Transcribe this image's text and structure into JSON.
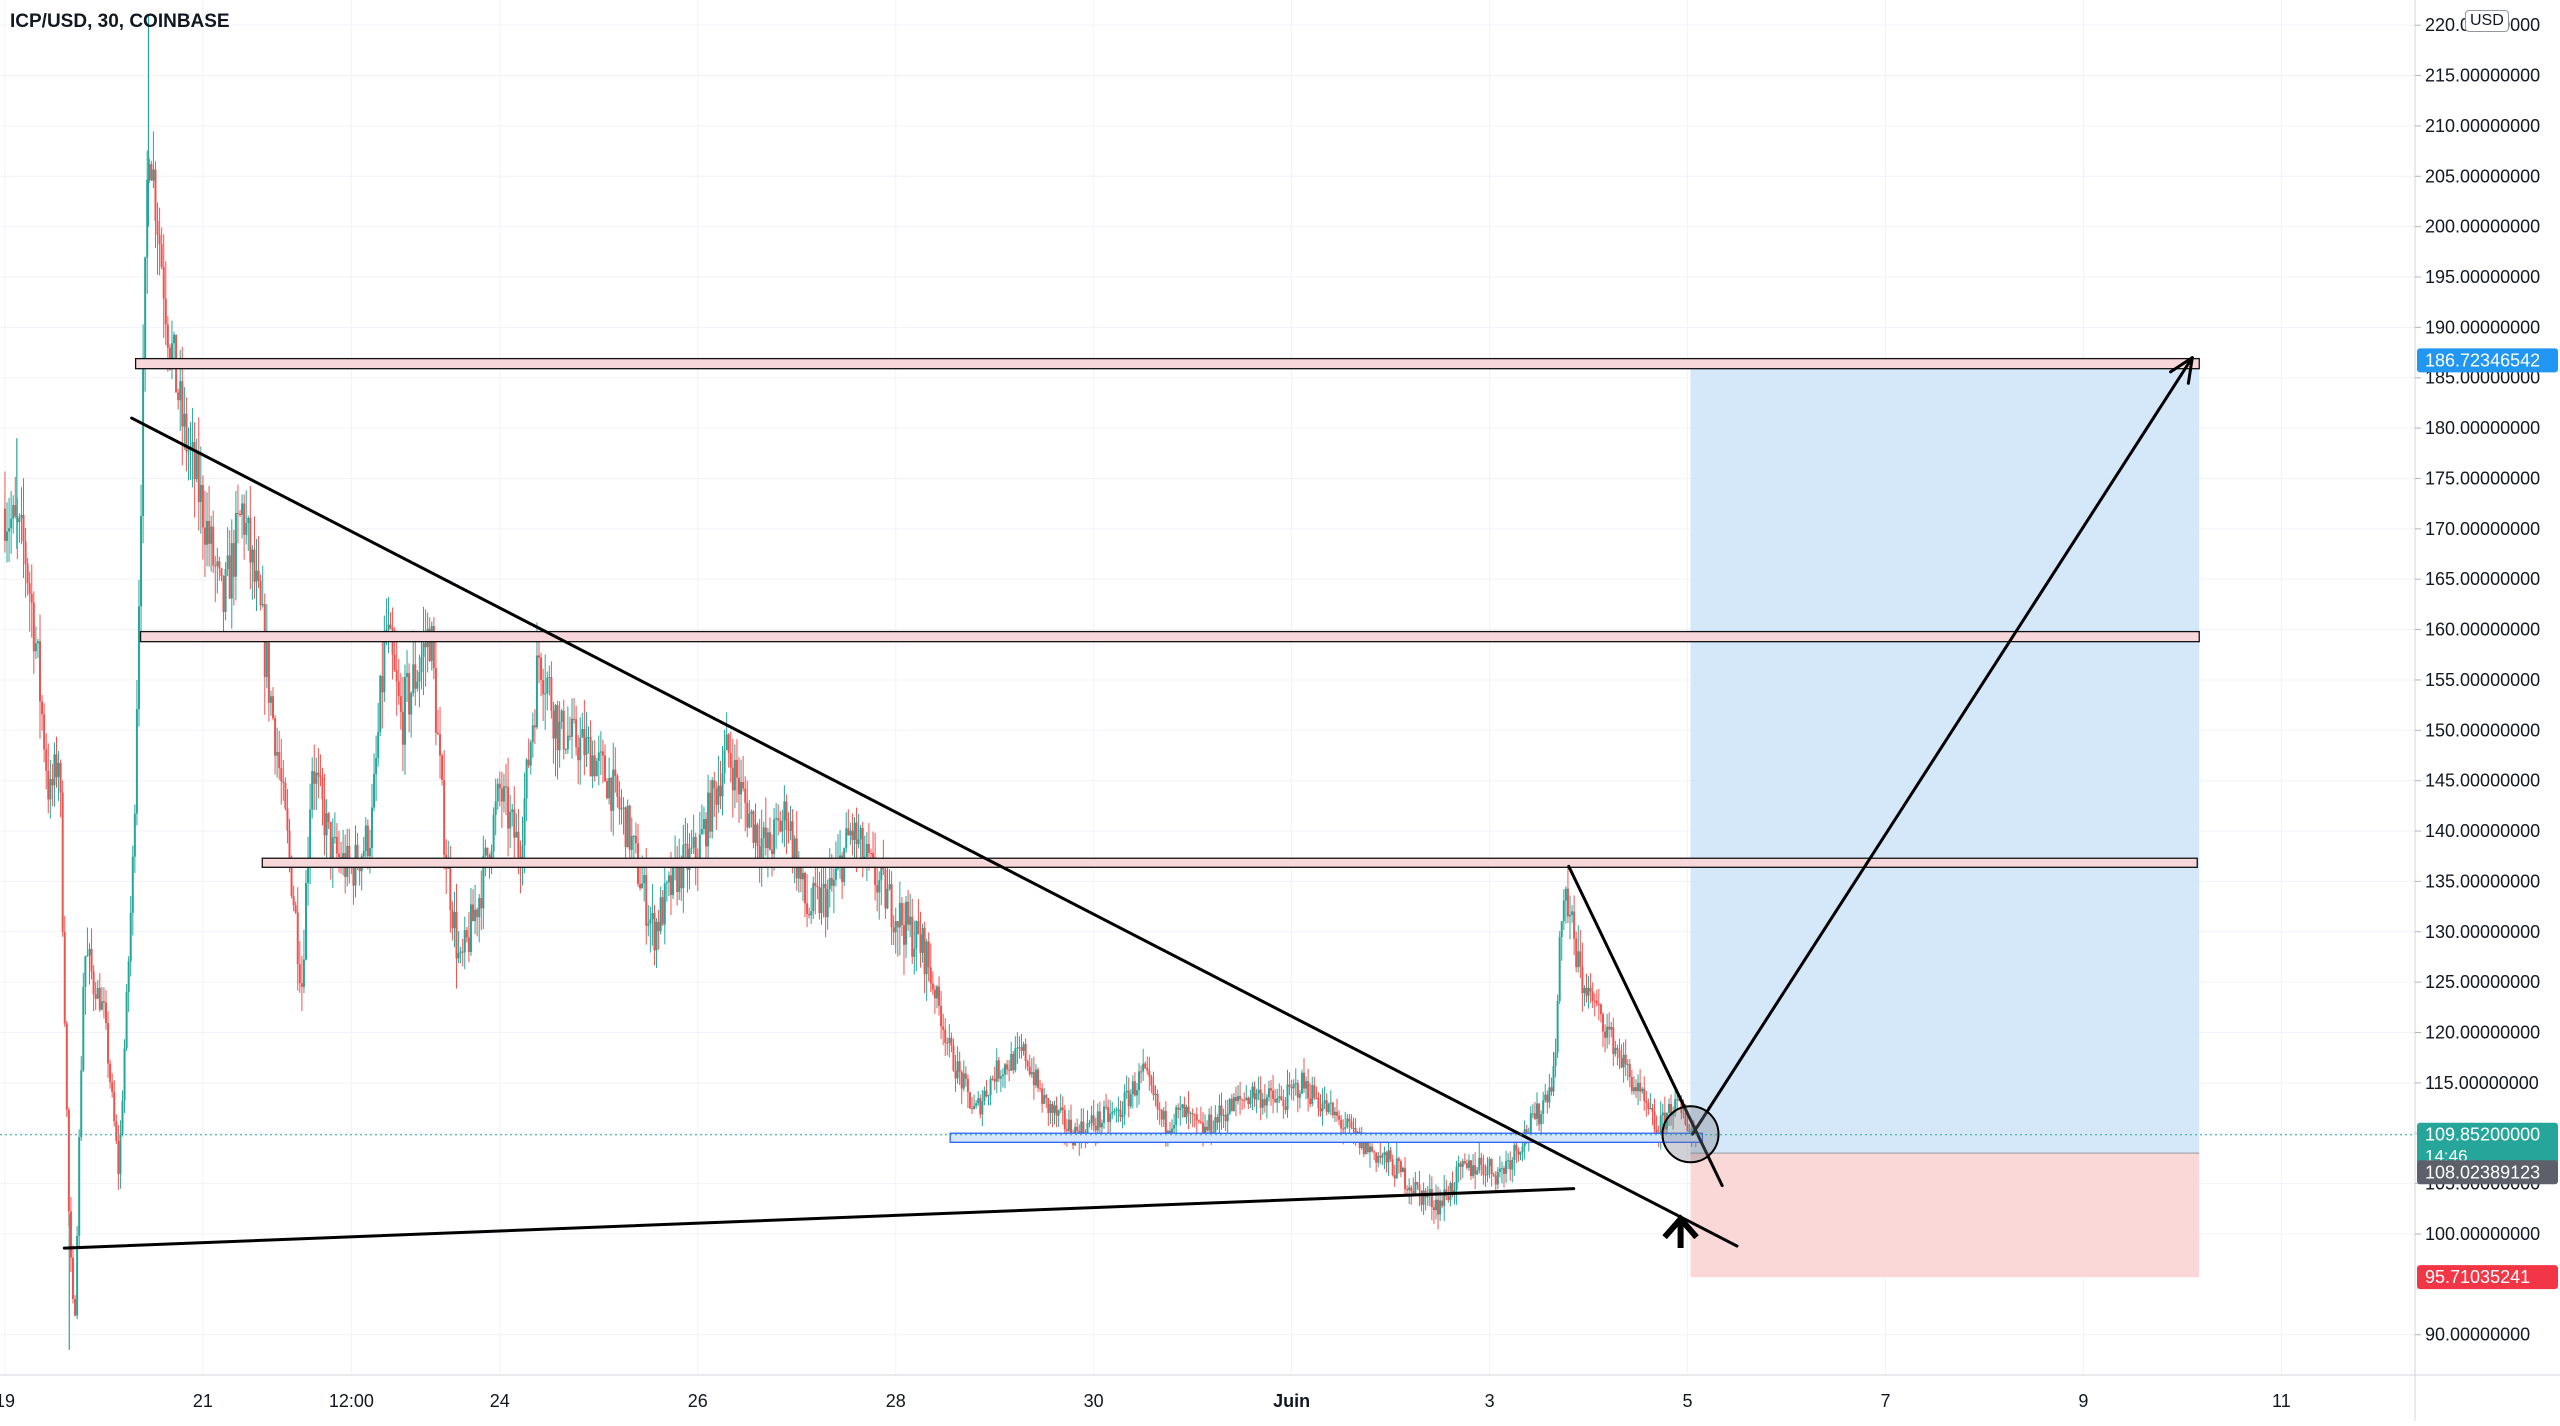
{
  "header": {
    "symbol": "ICP/USD, 30, COINBASE",
    "currency": "USD"
  },
  "colors": {
    "up": "#26a69a",
    "down": "#ef5350",
    "zone_fill": "#f8d7da",
    "zone_line": "#111111",
    "support_fill": "#d6e6fb",
    "target_fill": "#cfe5fa",
    "stop_fill": "#fbd4d4",
    "label_blue": "#2196f3",
    "label_red": "#f23645",
    "label_gray": "#5d606b",
    "price_green": "#26a69a",
    "line": "#000000",
    "grid": "#f0f3fa"
  },
  "chart_data": {
    "type": "candlestick",
    "symbol": "ICP/USD",
    "interval": "30",
    "exchange": "COINBASE",
    "y_axis": {
      "ticks": [
        "90.00000000",
        "100.00000000",
        "105.00000000",
        "110.00000000",
        "115.00000000",
        "120.00000000",
        "125.00000000",
        "130.00000000",
        "135.00000000",
        "140.00000000",
        "145.00000000",
        "150.00000000",
        "155.00000000",
        "160.00000000",
        "165.00000000",
        "170.00000000",
        "175.00000000",
        "180.00000000",
        "185.00000000",
        "190.00000000",
        "195.00000000",
        "200.00000000",
        "205.00000000",
        "210.00000000",
        "215.00000000",
        "220.00000000"
      ],
      "ylim": [
        86,
        222.5
      ]
    },
    "x_axis": {
      "ticks": [
        {
          "label": "19",
          "t": 0.0
        },
        {
          "label": "21",
          "t": 2.0
        },
        {
          "label": "12:00",
          "t": 3.5
        },
        {
          "label": "24",
          "t": 5.0
        },
        {
          "label": "26",
          "t": 7.0
        },
        {
          "label": "28",
          "t": 9.0
        },
        {
          "label": "30",
          "t": 11.0
        },
        {
          "label": "Juin",
          "t": 13.0
        },
        {
          "label": "3",
          "t": 15.0
        },
        {
          "label": "5",
          "t": 17.0
        },
        {
          "label": "7",
          "t": 19.0
        },
        {
          "label": "9",
          "t": 21.0
        },
        {
          "label": "11",
          "t": 23.0
        }
      ],
      "xlim": [
        -0.05,
        24.35
      ]
    },
    "price_path": [
      [
        0.0,
        172
      ],
      [
        0.2,
        168
      ],
      [
        0.3,
        160
      ],
      [
        0.45,
        143
      ],
      [
        0.55,
        148
      ],
      [
        0.65,
        100
      ],
      [
        0.7,
        90
      ],
      [
        0.8,
        128
      ],
      [
        1.0,
        122
      ],
      [
        1.15,
        106
      ],
      [
        1.3,
        138
      ],
      [
        1.35,
        162
      ],
      [
        1.45,
        210
      ],
      [
        1.55,
        200
      ],
      [
        1.65,
        190
      ],
      [
        1.8,
        180
      ],
      [
        2.0,
        172
      ],
      [
        2.2,
        162
      ],
      [
        2.4,
        172
      ],
      [
        2.6,
        160
      ],
      [
        2.75,
        148
      ],
      [
        2.9,
        135
      ],
      [
        3.0,
        125
      ],
      [
        3.1,
        147
      ],
      [
        3.3,
        138
      ],
      [
        3.5,
        136
      ],
      [
        3.7,
        140
      ],
      [
        3.85,
        160
      ],
      [
        4.0,
        151
      ],
      [
        4.3,
        160
      ],
      [
        4.45,
        138
      ],
      [
        4.6,
        126
      ],
      [
        4.8,
        134
      ],
      [
        5.0,
        144
      ],
      [
        5.2,
        138
      ],
      [
        5.4,
        158
      ],
      [
        5.6,
        150
      ],
      [
        5.9,
        148
      ],
      [
        6.1,
        145
      ],
      [
        6.3,
        140
      ],
      [
        6.55,
        130
      ],
      [
        6.8,
        136
      ],
      [
        7.0,
        138
      ],
      [
        7.3,
        148
      ],
      [
        7.5,
        142
      ],
      [
        7.7,
        138
      ],
      [
        7.9,
        142
      ],
      [
        8.1,
        132
      ],
      [
        8.35,
        134
      ],
      [
        8.55,
        140
      ],
      [
        8.75,
        136
      ],
      [
        9.0,
        132
      ],
      [
        9.3,
        128
      ],
      [
        9.55,
        118
      ],
      [
        9.8,
        112
      ],
      [
        10.0,
        116
      ],
      [
        10.3,
        118
      ],
      [
        10.5,
        113
      ],
      [
        10.8,
        110
      ],
      [
        11.0,
        111
      ],
      [
        11.25,
        112
      ],
      [
        11.5,
        116
      ],
      [
        11.7,
        111
      ],
      [
        11.9,
        112
      ],
      [
        12.1,
        110
      ],
      [
        12.3,
        112
      ],
      [
        12.6,
        114
      ],
      [
        12.9,
        113
      ],
      [
        13.1,
        115
      ],
      [
        13.4,
        112
      ],
      [
        13.7,
        109
      ],
      [
        14.0,
        107
      ],
      [
        14.3,
        104
      ],
      [
        14.5,
        103
      ],
      [
        14.7,
        106
      ],
      [
        14.9,
        107
      ],
      [
        15.1,
        106
      ],
      [
        15.3,
        109
      ],
      [
        15.5,
        112
      ],
      [
        15.65,
        116
      ],
      [
        15.75,
        135
      ],
      [
        15.9,
        126
      ],
      [
        16.1,
        122
      ],
      [
        16.3,
        118
      ],
      [
        16.5,
        114
      ],
      [
        16.7,
        110
      ],
      [
        16.85,
        113
      ],
      [
        17.0,
        111
      ],
      [
        17.1,
        109.852
      ]
    ],
    "last_price": "109.85200000",
    "countdown": "14:46",
    "trendlines": [
      {
        "name": "descending-resistance",
        "from": [
          1.28,
          181
        ],
        "to": [
          17.5,
          98.8
        ]
      },
      {
        "name": "ascending-support",
        "from": [
          0.6,
          98.6
        ],
        "to": [
          15.85,
          104.5
        ]
      },
      {
        "name": "short-term-resistance",
        "from": [
          15.8,
          136.5
        ],
        "to": [
          17.35,
          104.8
        ]
      },
      {
        "name": "projection-arrow",
        "from": [
          17.05,
          109.9
        ],
        "to": [
          22.1,
          187
        ]
      }
    ],
    "zones": [
      {
        "name": "resistance-zone-186",
        "from": 1.32,
        "to": 22.17,
        "y_low": 185.9,
        "y_high": 186.9
      },
      {
        "name": "resistance-zone-159",
        "from": 1.37,
        "to": 22.17,
        "y_low": 158.8,
        "y_high": 159.8
      },
      {
        "name": "resistance-zone-137",
        "from": 2.6,
        "to": 22.15,
        "y_low": 136.4,
        "y_high": 137.3
      },
      {
        "name": "support-zone-109",
        "from": 9.55,
        "to": 17.15,
        "y_low": 109.1,
        "y_high": 110.0
      }
    ],
    "position": {
      "entry": 108.02389123,
      "target": 186.72346542,
      "stop": 95.71035241,
      "from": 17.03,
      "to": 22.17,
      "labels": {
        "entry": "108.02389123",
        "target": "186.72346542",
        "stop": "95.71035241"
      }
    },
    "markers": [
      {
        "name": "breakout-circle",
        "t": 17.03,
        "y": 109.9
      },
      {
        "name": "up-arrow",
        "t": 16.93,
        "y": 100.5
      }
    ]
  }
}
